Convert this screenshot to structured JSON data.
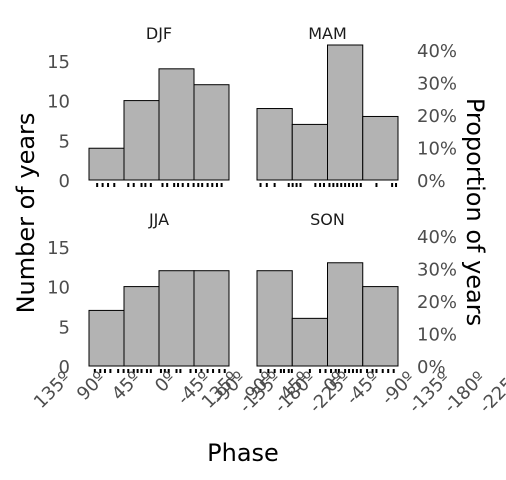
{
  "chart_data": {
    "type": "bar",
    "xlabel": "Phase",
    "ylabel": "Number of years",
    "ylabel_secondary": "Proportion of years",
    "ylim": [
      0,
      17
    ],
    "y_ticks": [
      "0",
      "5",
      "10",
      "15"
    ],
    "y2_ticks": [
      "0%",
      "10%",
      "20%",
      "30%",
      "40%"
    ],
    "categories": [
      "135º",
      "90º",
      "45º",
      "0º",
      "-45º",
      "-90º",
      "-135º",
      "-180º",
      "-225º"
    ],
    "bin_edges": [
      135,
      90,
      45,
      0,
      -45,
      -90,
      -135,
      -180,
      -225
    ],
    "bar_color": "#b3b3b3",
    "panels": [
      {
        "name": "DJF",
        "bins": [
          [
            112.5,
            67.5
          ],
          [
            67.5,
            22.5
          ],
          [
            22.5,
            -22.5
          ],
          [
            -22.5,
            -67.5
          ]
        ],
        "values": [
          4,
          10,
          14,
          12
        ],
        "rug": [
          102,
          95,
          88,
          80,
          62,
          55,
          45,
          40,
          33,
          18,
          12,
          3,
          -2,
          -8,
          -15,
          -22,
          -28,
          -33,
          -40,
          -46,
          -52,
          -58
        ]
      },
      {
        "name": "MAM",
        "bins": [
          [
            112.5,
            67.5
          ],
          [
            67.5,
            22.5
          ],
          [
            22.5,
            -22.5
          ],
          [
            -22.5,
            -67.5
          ]
        ],
        "values": [
          9,
          7,
          17,
          8
        ],
        "rug": [
          108,
          100,
          90,
          72,
          67,
          62,
          57,
          38,
          32,
          27,
          20,
          15,
          10,
          5,
          0,
          -5,
          -10,
          -15,
          -20,
          -40,
          -60,
          -65
        ]
      },
      {
        "name": "JJA",
        "bins": [
          [
            112.5,
            67.5
          ],
          [
            67.5,
            22.5
          ],
          [
            22.5,
            -22.5
          ],
          [
            -22.5,
            -67.5
          ]
        ],
        "values": [
          7,
          10,
          12,
          12
        ],
        "rug": [
          105,
          98,
          92,
          85,
          75,
          68,
          62,
          55,
          50,
          45,
          38,
          33,
          20,
          15,
          10,
          0,
          -5,
          -18,
          -25,
          -32,
          -40,
          -47,
          -55,
          -62
        ]
      },
      {
        "name": "SON",
        "bins": [
          [
            112.5,
            67.5
          ],
          [
            67.5,
            22.5
          ],
          [
            22.5,
            -22.5
          ],
          [
            -22.5,
            -67.5
          ]
        ],
        "values": [
          12,
          6,
          13,
          10
        ],
        "rug": [
          108,
          98,
          90,
          82,
          78,
          72,
          68,
          45,
          32,
          25,
          18,
          12,
          8,
          0,
          -5,
          -10,
          -15,
          -20,
          -28,
          -35,
          -40,
          -48,
          -55,
          -62
        ]
      }
    ]
  }
}
